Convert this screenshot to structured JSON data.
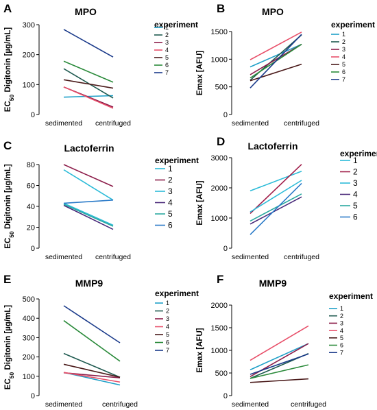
{
  "chart_data": [
    {
      "panel_label": "A",
      "type": "line",
      "title": "MPO",
      "ylabel": "EC50 Digitonin [µg/mL]",
      "ylabel_main": "EC",
      "ylabel_sub": "50",
      "ylabel_rest": " Digitonin [µg/mL]",
      "categories": [
        "sedimented",
        "centrifuged"
      ],
      "ylim": [
        0,
        300
      ],
      "yticks": [
        "0",
        "100",
        "200",
        "300"
      ],
      "legend_title": "experiment",
      "series": [
        {
          "name": "1",
          "color": "#1fa0c8",
          "values": [
            58,
            63
          ]
        },
        {
          "name": "2",
          "color": "#1f5a50",
          "values": [
            153,
            55
          ]
        },
        {
          "name": "3",
          "color": "#8c1d4a",
          "values": [
            92,
            25
          ]
        },
        {
          "name": "4",
          "color": "#e8506a",
          "values": [
            92,
            21
          ]
        },
        {
          "name": "5",
          "color": "#4a1a1a",
          "values": [
            116,
            88
          ]
        },
        {
          "name": "6",
          "color": "#2a8a3a",
          "values": [
            178,
            108
          ]
        },
        {
          "name": "7",
          "color": "#1a3a8a",
          "values": [
            284,
            192
          ]
        }
      ]
    },
    {
      "panel_label": "B",
      "type": "line",
      "title": "MPO",
      "ylabel": "Emax [AFU]",
      "categories": [
        "sedimented",
        "centrifuged"
      ],
      "ylim": [
        0,
        1500
      ],
      "yticks": [
        "0",
        "500",
        "1000",
        "1500"
      ],
      "legend_title": "experiment",
      "series": [
        {
          "name": "1",
          "color": "#1fa0c8",
          "values": [
            860,
            1270
          ]
        },
        {
          "name": "2",
          "color": "#1f5a50",
          "values": [
            620,
            1440
          ]
        },
        {
          "name": "3",
          "color": "#8c1d4a",
          "values": [
            720,
            1270
          ]
        },
        {
          "name": "4",
          "color": "#e8506a",
          "values": [
            990,
            1490
          ]
        },
        {
          "name": "5",
          "color": "#4a1a1a",
          "values": [
            610,
            910
          ]
        },
        {
          "name": "6",
          "color": "#2a8a3a",
          "values": [
            660,
            1270
          ]
        },
        {
          "name": "7",
          "color": "#1a3a8a",
          "values": [
            480,
            1450
          ]
        }
      ]
    },
    {
      "panel_label": "C",
      "type": "line",
      "title": "Lactoferrin",
      "ylabel": "EC50 Digitonin [µg/mL]",
      "ylabel_main": "EC",
      "ylabel_sub": "50",
      "ylabel_rest": " Digitonin [µg/mL]",
      "categories": [
        "sedimented",
        "centrifuged"
      ],
      "ylim": [
        0,
        80
      ],
      "yticks": [
        "0",
        "20",
        "40",
        "60",
        "80"
      ],
      "legend_title": "experiment",
      "series": [
        {
          "name": "1",
          "color": "#2bbbd8",
          "values": [
            75,
            46
          ]
        },
        {
          "name": "2",
          "color": "#8c1d4a",
          "values": [
            80,
            59
          ]
        },
        {
          "name": "3",
          "color": "#2bbbd8",
          "values": [
            43,
            22
          ]
        },
        {
          "name": "4",
          "color": "#4a2a7a",
          "values": [
            41,
            18
          ]
        },
        {
          "name": "5",
          "color": "#2aa8a0",
          "values": [
            42,
            21
          ]
        },
        {
          "name": "6",
          "color": "#2a7ac8",
          "values": [
            43,
            46
          ]
        }
      ]
    },
    {
      "panel_label": "D",
      "type": "line",
      "title": "Lactoferrin",
      "ylabel": "Emax [AFU]",
      "categories": [
        "sedimented",
        "centrifuged"
      ],
      "ylim": [
        0,
        3000
      ],
      "yticks": [
        "0",
        "1000",
        "2000",
        "3000"
      ],
      "legend_title": "experiment",
      "series": [
        {
          "name": "1",
          "color": "#2bbbd8",
          "values": [
            1900,
            2550
          ]
        },
        {
          "name": "2",
          "color": "#a01e4a",
          "values": [
            1150,
            2780
          ]
        },
        {
          "name": "3",
          "color": "#2bbbd8",
          "values": [
            1200,
            2250
          ]
        },
        {
          "name": "4",
          "color": "#4a2a7a",
          "values": [
            800,
            1700
          ]
        },
        {
          "name": "5",
          "color": "#2aa8a0",
          "values": [
            900,
            1800
          ]
        },
        {
          "name": "6",
          "color": "#2a7ac8",
          "values": [
            450,
            2150
          ]
        }
      ]
    },
    {
      "panel_label": "E",
      "type": "line",
      "title": "MMP9",
      "ylabel": "EC50 Digitonin [µg/mL]",
      "ylabel_main": "EC",
      "ylabel_sub": "50",
      "ylabel_rest": " Digitonin [µg/mL]",
      "categories": [
        "sedimented",
        "centrifuged"
      ],
      "ylim": [
        0,
        500
      ],
      "yticks": [
        "0",
        "100",
        "200",
        "300",
        "400",
        "500"
      ],
      "legend_title": "experiment",
      "series": [
        {
          "name": "1",
          "color": "#1fa0c8",
          "values": [
            120,
            55
          ]
        },
        {
          "name": "2",
          "color": "#1f5a50",
          "values": [
            218,
            95
          ]
        },
        {
          "name": "3",
          "color": "#8c1d4a",
          "values": [
            118,
            92
          ]
        },
        {
          "name": "4",
          "color": "#e8506a",
          "values": [
            120,
            70
          ]
        },
        {
          "name": "5",
          "color": "#4a1a1a",
          "values": [
            162,
            95
          ]
        },
        {
          "name": "6",
          "color": "#2a8a3a",
          "values": [
            388,
            178
          ]
        },
        {
          "name": "7",
          "color": "#1a3a8a",
          "values": [
            465,
            273
          ]
        }
      ]
    },
    {
      "panel_label": "F",
      "type": "line",
      "title": "MMP9",
      "ylabel": "Emax [AFU]",
      "categories": [
        "sedimented",
        "centrifuged"
      ],
      "ylim": [
        0,
        2000
      ],
      "yticks": [
        "0",
        "500",
        "1000",
        "1500",
        "2000"
      ],
      "legend_title": "experiment",
      "series": [
        {
          "name": "1",
          "color": "#1fa0c8",
          "values": [
            570,
            1150
          ]
        },
        {
          "name": "2",
          "color": "#1f5a50",
          "values": [
            380,
            930
          ]
        },
        {
          "name": "3",
          "color": "#8c1d4a",
          "values": [
            420,
            1150
          ]
        },
        {
          "name": "4",
          "color": "#e8506a",
          "values": [
            780,
            1540
          ]
        },
        {
          "name": "5",
          "color": "#4a1a1a",
          "values": [
            290,
            370
          ]
        },
        {
          "name": "6",
          "color": "#2a8a3a",
          "values": [
            380,
            680
          ]
        },
        {
          "name": "7",
          "color": "#1a3a8a",
          "values": [
            470,
            920
          ]
        }
      ]
    }
  ]
}
